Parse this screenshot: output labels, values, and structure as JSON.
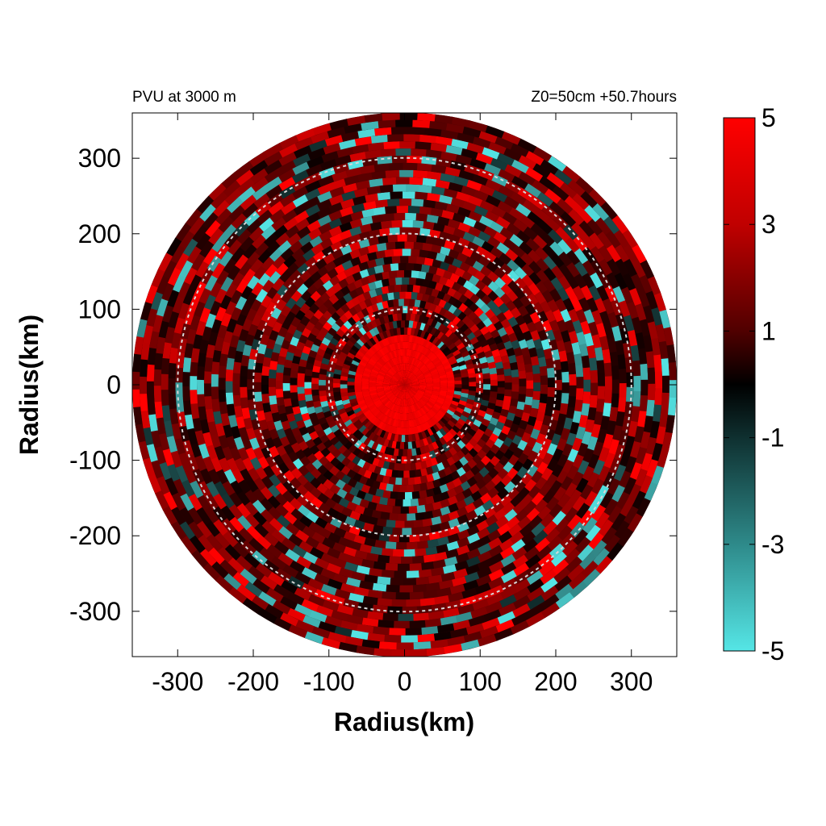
{
  "chart_data": {
    "type": "heatmap",
    "title_left": "PVU at  3000 m",
    "title_right": "Z0=50cm  +50.7hours",
    "xlabel": "Radius(km)",
    "ylabel": "Radius(km)",
    "xlim": [
      -360,
      360
    ],
    "ylim": [
      -360,
      360
    ],
    "x_ticks": [
      -300,
      -200,
      -100,
      0,
      100,
      200,
      300
    ],
    "x_tick_labels": [
      "-300",
      "-200",
      "-100",
      "0",
      "100",
      "200",
      "300"
    ],
    "y_ticks": [
      300,
      200,
      100,
      0,
      -100,
      -200,
      -300
    ],
    "y_tick_labels": [
      "300",
      "200",
      "100",
      "0",
      "-100",
      "-200",
      "-300"
    ],
    "reference_circles_km": [
      100,
      200,
      300
    ],
    "domain_radius_km": 360,
    "core_value": 5,
    "core_radius_km": 60,
    "colorbar": {
      "range": [
        -5,
        5
      ],
      "ticks": [
        5,
        3,
        1,
        -1,
        -3,
        -5
      ],
      "tick_labels": [
        "5",
        "3",
        "1",
        "-1",
        "-3",
        "-5"
      ],
      "colors": {
        "max": "#ff0000",
        "mid": "#000000",
        "min": "#55e6e6"
      }
    },
    "grid": false
  }
}
